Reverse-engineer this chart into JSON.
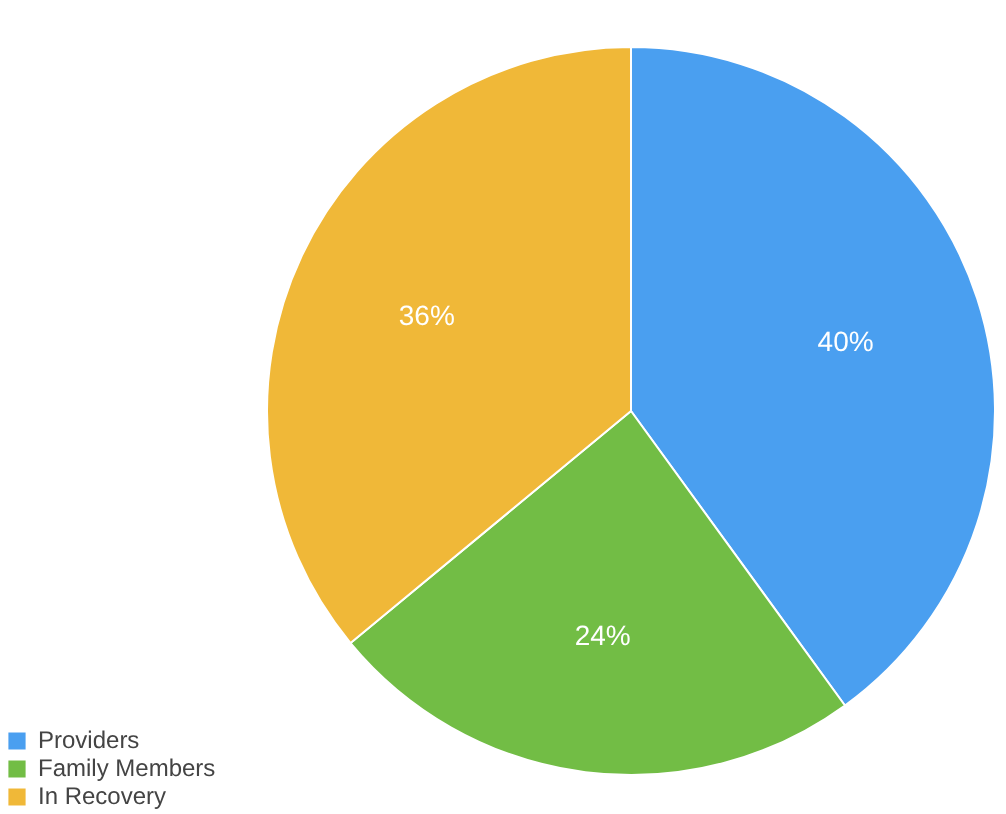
{
  "chart_data": {
    "type": "pie",
    "categories": [
      "Providers",
      "Family Members",
      "In Recovery"
    ],
    "values": [
      40,
      24,
      36
    ],
    "colors": [
      "#4a9ff0",
      "#72bd45",
      "#f0b838"
    ],
    "value_labels": [
      "40%",
      "24%",
      "36%"
    ],
    "legend": "bottom left"
  }
}
